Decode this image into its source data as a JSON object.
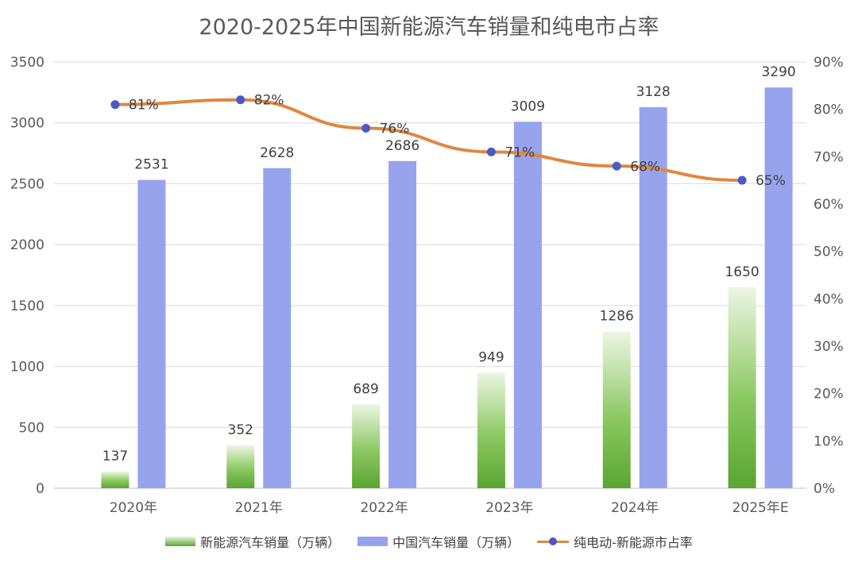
{
  "chart_data": {
    "type": "bar",
    "title": "2020-2025年中国新能源汽车销量和纯电市占率",
    "categories": [
      "2020年",
      "2021年",
      "2022年",
      "2023年",
      "2024年",
      "2025年E"
    ],
    "series": [
      {
        "name": "新能源汽车销量（万辆）",
        "type": "bar",
        "axis": "left",
        "values": [
          137,
          352,
          689,
          949,
          1286,
          1650
        ],
        "color": "#6db33f"
      },
      {
        "name": "中国汽车销量（万辆）",
        "type": "bar",
        "axis": "left",
        "values": [
          2531,
          2628,
          2686,
          3009,
          3128,
          3290
        ],
        "color": "#97a3ed"
      },
      {
        "name": "纯电动-新能源市占率",
        "type": "line",
        "axis": "right",
        "values": [
          81,
          82,
          76,
          71,
          68,
          65
        ],
        "color": "#e0873f",
        "marker_color": "#4a58c8"
      }
    ],
    "y_left": {
      "min": 0,
      "max": 3500,
      "ticks": [
        "0",
        "500",
        "1000",
        "1500",
        "2000",
        "2500",
        "3000",
        "3500"
      ]
    },
    "y_right": {
      "min": 0,
      "max": 90,
      "ticks": [
        "0%",
        "10%",
        "20%",
        "30%",
        "40%",
        "50%",
        "60%",
        "70%",
        "80%",
        "90%"
      ]
    },
    "line_labels": [
      "81%",
      "82%",
      "76%",
      "71%",
      "68%",
      "65%"
    ],
    "grid": true,
    "legend_position": "bottom"
  }
}
